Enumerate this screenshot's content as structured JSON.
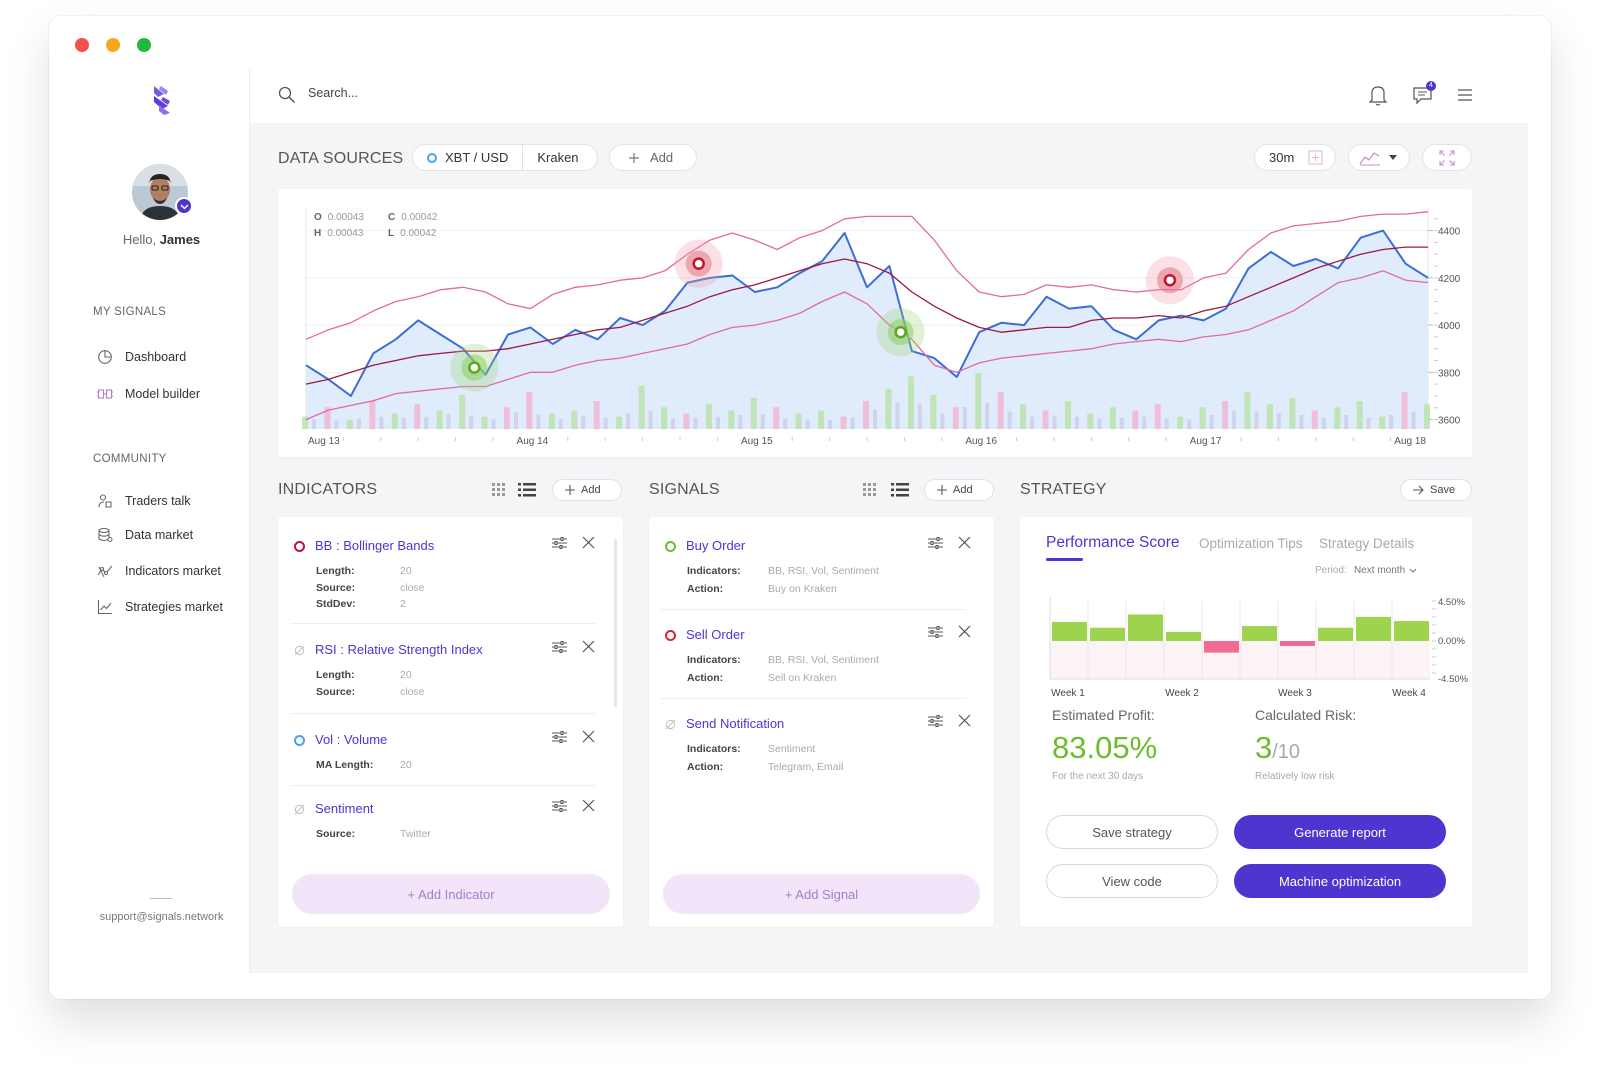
{
  "user": {
    "greeting": "Hello,",
    "name": "James"
  },
  "sidebar": {
    "sections": [
      {
        "title": "MY SIGNALS",
        "items": [
          {
            "label": "Dashboard",
            "icon": "dashboard-icon"
          },
          {
            "label": "Model builder",
            "icon": "model-builder-icon"
          }
        ]
      },
      {
        "title": "COMMUNITY",
        "items": [
          {
            "label": "Traders talk",
            "icon": "traders-talk-icon"
          },
          {
            "label": "Data market",
            "icon": "data-market-icon"
          },
          {
            "label": "Indicators market",
            "icon": "indicators-market-icon"
          },
          {
            "label": "Strategies market",
            "icon": "strategies-market-icon"
          }
        ]
      }
    ],
    "support_email": "support@signals.network"
  },
  "topbar": {
    "search_placeholder": "Search...",
    "message_count": "4"
  },
  "data_sources": {
    "title": "DATA SOURCES",
    "pair": "XBT / USD",
    "exchange": "Kraken",
    "add_label": "Add",
    "interval": "30m"
  },
  "chart": {
    "ohlc": {
      "o_label": "O",
      "o": "0.00043",
      "c_label": "C",
      "c": "0.00042",
      "h_label": "H",
      "h": "0.00043",
      "l_label": "L",
      "l": "0.00042"
    },
    "x_labels": [
      "Aug 13",
      "Aug 14",
      "Aug 15",
      "Aug 16",
      "Aug 17",
      "Aug 18"
    ],
    "y_labels": [
      "4400",
      "4200",
      "4000",
      "3800",
      "3600"
    ]
  },
  "chart_data": {
    "type": "line",
    "x_labels": [
      "Aug 13",
      "Aug 14",
      "Aug 15",
      "Aug 16",
      "Aug 17",
      "Aug 18"
    ],
    "y_ticks": [
      4400,
      4200,
      4000,
      3800,
      3600
    ],
    "ylim": [
      3560,
      4500
    ],
    "x_index": [
      0,
      2,
      4,
      6,
      8,
      10,
      12,
      14,
      16,
      18,
      20,
      22,
      24,
      26,
      28,
      30,
      32,
      34,
      36,
      38,
      40,
      42,
      44,
      46,
      48,
      50,
      52,
      54,
      56,
      58,
      60,
      62,
      64,
      66,
      68,
      70,
      72,
      74,
      76,
      78,
      80,
      82,
      84,
      86,
      88,
      90,
      92,
      94,
      96,
      98,
      100
    ],
    "series": [
      {
        "color": "#3b6fd4",
        "values": [
          3830,
          3770,
          3700,
          3880,
          3940,
          4020,
          3960,
          3900,
          3790,
          3960,
          3990,
          3920,
          3980,
          3940,
          4030,
          4000,
          4060,
          4180,
          4200,
          4210,
          4140,
          4160,
          4220,
          4270,
          4390,
          4160,
          4250,
          3890,
          3860,
          3780,
          3970,
          4010,
          4000,
          4120,
          4070,
          4080,
          3980,
          3940,
          4020,
          4040,
          4020,
          4070,
          4240,
          4310,
          4250,
          4280,
          4240,
          4370,
          4400,
          4260,
          4200
        ]
      },
      {
        "color": "#9b1945",
        "values": [
          3750,
          3770,
          3800,
          3830,
          3850,
          3870,
          3880,
          3890,
          3890,
          3900,
          3920,
          3940,
          3960,
          3980,
          3990,
          4020,
          4050,
          4080,
          4120,
          4150,
          4170,
          4200,
          4230,
          4260,
          4280,
          4260,
          4220,
          4140,
          4080,
          4030,
          3990,
          3970,
          3980,
          3990,
          3990,
          4020,
          4030,
          4030,
          4040,
          4030,
          4060,
          4080,
          4120,
          4160,
          4200,
          4240,
          4270,
          4300,
          4320,
          4330,
          4330
        ]
      },
      {
        "color": "#e26aa0",
        "values": [
          3940,
          3980,
          4010,
          4060,
          4100,
          4120,
          4150,
          4160,
          4140,
          4090,
          4070,
          4130,
          4160,
          4170,
          4190,
          4200,
          4230,
          4300,
          4360,
          4390,
          4360,
          4320,
          4370,
          4400,
          4450,
          4460,
          4460,
          4460,
          4360,
          4230,
          4140,
          4120,
          4130,
          4170,
          4160,
          4170,
          4150,
          4140,
          4150,
          4150,
          4200,
          4220,
          4320,
          4390,
          4420,
          4430,
          4440,
          4460,
          4470,
          4470,
          4480
        ]
      },
      {
        "color": "#e26aa0",
        "values": [
          3600,
          3640,
          3660,
          3680,
          3710,
          3720,
          3730,
          3740,
          3740,
          3770,
          3800,
          3800,
          3830,
          3850,
          3860,
          3880,
          3900,
          3920,
          3960,
          3990,
          4000,
          4020,
          4050,
          4100,
          4140,
          4090,
          4000,
          3940,
          3830,
          3800,
          3840,
          3860,
          3870,
          3880,
          3890,
          3900,
          3920,
          3930,
          3940,
          3930,
          3950,
          3960,
          3980,
          4020,
          4060,
          4120,
          4180,
          4200,
          4230,
          4190,
          4180
        ]
      }
    ],
    "markers": [
      {
        "type": "buy",
        "x": 15,
        "y": 3820
      },
      {
        "type": "sell",
        "x": 35,
        "y": 4260
      },
      {
        "type": "buy",
        "x": 53,
        "y": 3970
      },
      {
        "type": "sell",
        "x": 77,
        "y": 4190
      }
    ],
    "volume_values": [
      20,
      35,
      15,
      45,
      25,
      40,
      30,
      55,
      20,
      35,
      60,
      25,
      30,
      45,
      20,
      70,
      35,
      25,
      40,
      30,
      50,
      35,
      25,
      30,
      20,
      45,
      65,
      85,
      55,
      35,
      90,
      60,
      40,
      30,
      45,
      25,
      35,
      30,
      40,
      20,
      35,
      45,
      60,
      40,
      50,
      30,
      35,
      45,
      20,
      60,
      40
    ],
    "grid": true
  },
  "indicators": {
    "title": "INDICATORS",
    "add_label": "Add",
    "add_big_label": "+ Add Indicator",
    "items": [
      {
        "abbr": "BB",
        "name": "Bollinger Bands",
        "dot": "#b5193f",
        "style": "ring",
        "rows": [
          {
            "k": "Length:",
            "v": "20"
          },
          {
            "k": "Source:",
            "v": "close"
          },
          {
            "k": "StdDev:",
            "v": "2"
          }
        ]
      },
      {
        "abbr": "RSI",
        "name": "Relative Strength Index",
        "dot": "#bbbbbb",
        "style": "slash",
        "rows": [
          {
            "k": "Length:",
            "v": "20"
          },
          {
            "k": "Source:",
            "v": "close"
          }
        ]
      },
      {
        "abbr": "Vol",
        "name": "Volume",
        "dot": "#4aa3f0",
        "style": "ring",
        "rows": [
          {
            "k": "MA Length:",
            "v": "20"
          }
        ]
      },
      {
        "abbr": "",
        "name": "Sentiment",
        "dot": "#bbbbbb",
        "style": "slash",
        "rows": [
          {
            "k": "Source:",
            "v": "Twitter"
          }
        ]
      }
    ]
  },
  "signals": {
    "title": "SIGNALS",
    "add_label": "Add",
    "add_big_label": "+ Add Signal",
    "items": [
      {
        "name": "Buy Order",
        "dot": "#6cbd2e",
        "style": "ring",
        "rows": [
          {
            "k": "Indicators:",
            "v": "BB, RSI, Vol, Sentiment"
          },
          {
            "k": "Action:",
            "v": "Buy on Kraken"
          }
        ]
      },
      {
        "name": "Sell Order",
        "dot": "#d4282c",
        "style": "ring",
        "rows": [
          {
            "k": "Indicators:",
            "v": "BB, RSI, Vol, Sentiment"
          },
          {
            "k": "Action:",
            "v": "Sell on Kraken"
          }
        ]
      },
      {
        "name": "Send Notification",
        "dot": "#bbbbbb",
        "style": "slash",
        "rows": [
          {
            "k": "Indicators:",
            "v": "Sentiment"
          },
          {
            "k": "Action:",
            "v": "Telegram, Email"
          }
        ]
      }
    ]
  },
  "strategy": {
    "title": "STRATEGY",
    "save_label": "Save",
    "tabs": [
      "Performance Score",
      "Optimization Tips",
      "Strategy Details"
    ],
    "period_label": "Period:",
    "period_value": "Next month",
    "y_labels": [
      "4.50%",
      "0.00%",
      "-4.50%"
    ],
    "week_labels": [
      "Week 1",
      "Week 2",
      "Week 3",
      "Week 4"
    ],
    "bars": [
      2.3,
      1.6,
      3.2,
      1.1,
      -1.4,
      1.8,
      -0.6,
      1.6,
      2.9,
      2.4
    ],
    "estimated_profit_label": "Estimated Profit:",
    "estimated_profit": "83.05%",
    "estimated_profit_note": "For the next 30 days",
    "risk_label": "Calculated Risk:",
    "risk_value": "3",
    "risk_max": "/10",
    "risk_note": "Relatively low risk",
    "buttons": {
      "save": "Save strategy",
      "report": "Generate report",
      "code": "View code",
      "optimize": "Machine optimization"
    }
  }
}
